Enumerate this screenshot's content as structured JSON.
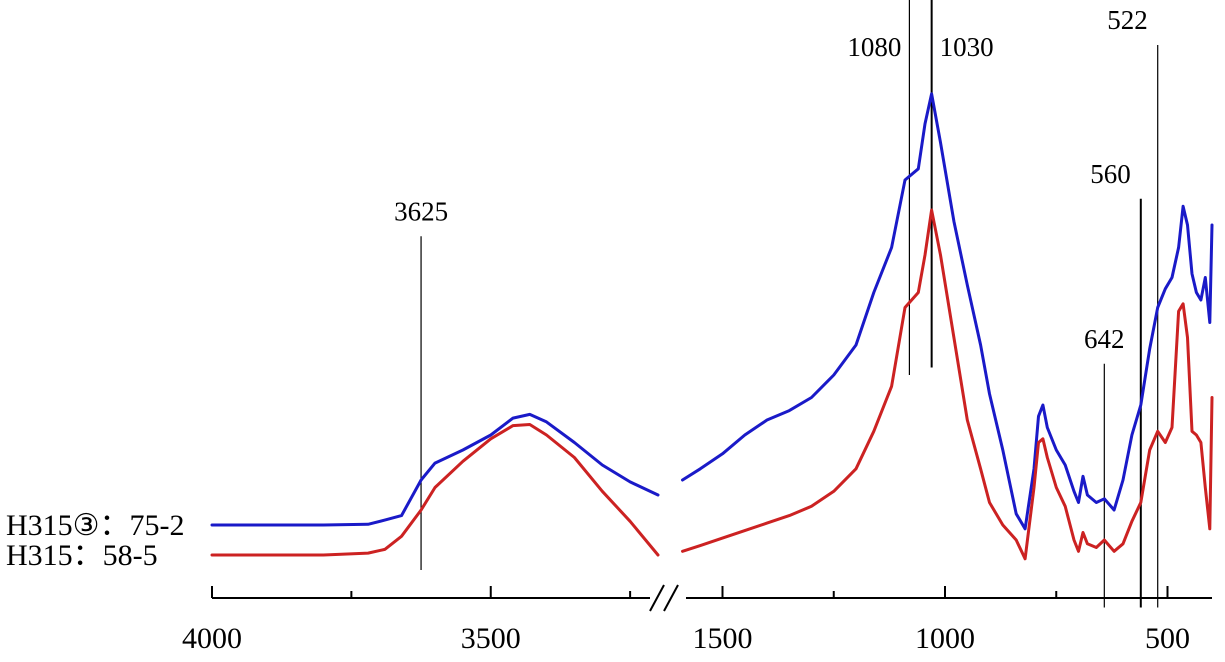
{
  "chart_data": {
    "type": "line",
    "title": "",
    "xlabel": "",
    "ylabel": "",
    "x_axis": {
      "reversed": true,
      "broken": true,
      "segments": [
        [
          4000,
          3200
        ],
        [
          1600,
          400
        ]
      ],
      "ticks": [
        4000,
        3500,
        1500,
        1000,
        500
      ],
      "tick_labels": [
        "4000",
        "3500",
        "1500",
        "1000",
        "500"
      ],
      "minor_ticks": [
        3750,
        3250,
        1250,
        750
      ]
    },
    "grid": false,
    "legend": "left of curves",
    "series": [
      {
        "name": "H315③：75-2",
        "color": "#1a1ac8",
        "points": [
          [
            4000,
            0.8
          ],
          [
            3800,
            0.8
          ],
          [
            3720,
            0.82
          ],
          [
            3690,
            0.93
          ],
          [
            3660,
            1.05
          ],
          [
            3625,
            2.0
          ],
          [
            3600,
            2.45
          ],
          [
            3550,
            2.8
          ],
          [
            3500,
            3.2
          ],
          [
            3460,
            3.65
          ],
          [
            3430,
            3.75
          ],
          [
            3400,
            3.55
          ],
          [
            3350,
            3.0
          ],
          [
            3300,
            2.4
          ],
          [
            3250,
            1.95
          ],
          [
            3200,
            1.6
          ],
          [
            1590,
            2.0
          ],
          [
            1550,
            2.3
          ],
          [
            1500,
            2.7
          ],
          [
            1450,
            3.2
          ],
          [
            1400,
            3.6
          ],
          [
            1350,
            3.85
          ],
          [
            1300,
            4.2
          ],
          [
            1250,
            4.8
          ],
          [
            1200,
            5.6
          ],
          [
            1160,
            7.0
          ],
          [
            1120,
            8.2
          ],
          [
            1090,
            10.0
          ],
          [
            1060,
            10.3
          ],
          [
            1045,
            11.5
          ],
          [
            1030,
            12.3
          ],
          [
            1010,
            11.0
          ],
          [
            980,
            8.9
          ],
          [
            950,
            7.2
          ],
          [
            920,
            5.6
          ],
          [
            900,
            4.3
          ],
          [
            870,
            2.8
          ],
          [
            840,
            1.1
          ],
          [
            820,
            0.7
          ],
          [
            800,
            2.3
          ],
          [
            790,
            3.7
          ],
          [
            780,
            4.0
          ],
          [
            770,
            3.4
          ],
          [
            750,
            2.8
          ],
          [
            730,
            2.4
          ],
          [
            710,
            1.7
          ],
          [
            700,
            1.4
          ],
          [
            690,
            2.1
          ],
          [
            680,
            1.6
          ],
          [
            660,
            1.4
          ],
          [
            642,
            1.5
          ],
          [
            620,
            1.2
          ],
          [
            600,
            2.0
          ],
          [
            580,
            3.2
          ],
          [
            560,
            4.0
          ],
          [
            540,
            5.5
          ],
          [
            522,
            6.6
          ],
          [
            505,
            7.1
          ],
          [
            490,
            7.4
          ],
          [
            475,
            8.2
          ],
          [
            465,
            9.3
          ],
          [
            455,
            8.8
          ],
          [
            445,
            7.5
          ],
          [
            435,
            7.0
          ],
          [
            425,
            6.8
          ],
          [
            415,
            7.4
          ],
          [
            405,
            6.2
          ],
          [
            400,
            8.8
          ]
        ]
      },
      {
        "name": "H315：58-5",
        "color": "#cc2222",
        "points": [
          [
            4000,
            0.0
          ],
          [
            3800,
            0.0
          ],
          [
            3720,
            0.05
          ],
          [
            3690,
            0.15
          ],
          [
            3660,
            0.5
          ],
          [
            3625,
            1.2
          ],
          [
            3600,
            1.8
          ],
          [
            3550,
            2.5
          ],
          [
            3500,
            3.1
          ],
          [
            3460,
            3.45
          ],
          [
            3430,
            3.48
          ],
          [
            3400,
            3.2
          ],
          [
            3350,
            2.6
          ],
          [
            3300,
            1.7
          ],
          [
            3250,
            0.9
          ],
          [
            3200,
            0.0
          ],
          [
            1590,
            0.1
          ],
          [
            1550,
            0.25
          ],
          [
            1500,
            0.45
          ],
          [
            1450,
            0.65
          ],
          [
            1400,
            0.85
          ],
          [
            1350,
            1.05
          ],
          [
            1300,
            1.3
          ],
          [
            1250,
            1.7
          ],
          [
            1200,
            2.3
          ],
          [
            1160,
            3.3
          ],
          [
            1120,
            4.5
          ],
          [
            1090,
            6.6
          ],
          [
            1060,
            7.0
          ],
          [
            1045,
            8.0
          ],
          [
            1030,
            9.2
          ],
          [
            1010,
            8.0
          ],
          [
            980,
            5.8
          ],
          [
            950,
            3.6
          ],
          [
            920,
            2.3
          ],
          [
            900,
            1.4
          ],
          [
            870,
            0.8
          ],
          [
            840,
            0.4
          ],
          [
            820,
            -0.1
          ],
          [
            800,
            1.8
          ],
          [
            790,
            3.0
          ],
          [
            780,
            3.1
          ],
          [
            770,
            2.6
          ],
          [
            750,
            1.8
          ],
          [
            730,
            1.3
          ],
          [
            710,
            0.4
          ],
          [
            700,
            0.1
          ],
          [
            690,
            0.6
          ],
          [
            680,
            0.3
          ],
          [
            660,
            0.2
          ],
          [
            642,
            0.4
          ],
          [
            620,
            0.1
          ],
          [
            600,
            0.3
          ],
          [
            580,
            0.9
          ],
          [
            560,
            1.4
          ],
          [
            540,
            2.8
          ],
          [
            522,
            3.3
          ],
          [
            505,
            3.0
          ],
          [
            490,
            3.4
          ],
          [
            475,
            6.5
          ],
          [
            465,
            6.7
          ],
          [
            455,
            5.8
          ],
          [
            445,
            3.3
          ],
          [
            435,
            3.2
          ],
          [
            425,
            3.0
          ],
          [
            415,
            1.8
          ],
          [
            405,
            0.7
          ],
          [
            400,
            4.2
          ]
        ]
      }
    ],
    "annotations": [
      {
        "x": 3625,
        "label": "3625",
        "y_top": 8.5,
        "y_bottom": -0.4
      },
      {
        "x": 1080,
        "label": "1080",
        "y_top": 16.0,
        "y_bottom": 4.8
      },
      {
        "x": 1030,
        "label": "1030",
        "y_top": 16.0,
        "y_bottom": 5.0
      },
      {
        "x": 642,
        "label": "642",
        "y_top": 5.1,
        "y_bottom": -1.4
      },
      {
        "x": 560,
        "label": "560",
        "y_top": 9.5,
        "y_bottom": -1.4
      },
      {
        "x": 522,
        "label": "522",
        "y_top": 13.6,
        "y_bottom": -1.4
      }
    ]
  }
}
